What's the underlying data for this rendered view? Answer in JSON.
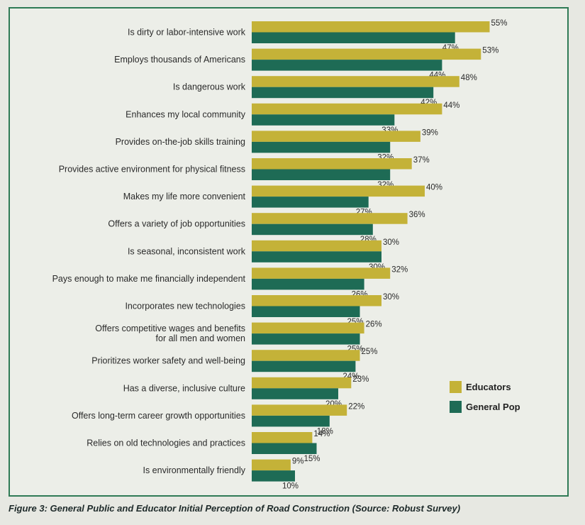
{
  "chart_data": {
    "type": "bar",
    "orientation": "horizontal",
    "categories": [
      "Is dirty or labor-intensive work",
      "Employs thousands of Americans",
      "Is dangerous work",
      "Enhances my local community",
      "Provides on-the-job skills training",
      "Provides active environment for physical fitness",
      "Makes my life more convenient",
      "Offers a variety of job opportunities",
      "Is seasonal, inconsistent work",
      "Pays enough to make me financially independent",
      "Incorporates new technologies",
      "Offers competitive wages and benefits\nfor all men and women",
      "Prioritizes worker safety and well-being",
      "Has a diverse, inclusive culture",
      "Offers long-term career growth opportunities",
      "Relies on old technologies and practices",
      "Is environmentally friendly"
    ],
    "series": [
      {
        "name": "Educators",
        "color": "#c4b238",
        "values": [
          55,
          53,
          48,
          44,
          39,
          37,
          40,
          36,
          30,
          32,
          30,
          26,
          25,
          23,
          22,
          14,
          9
        ],
        "labels": [
          "55%",
          "53%",
          "48%",
          "44%",
          "39%",
          "37%",
          "40%",
          "36%",
          "30%",
          "32%",
          "30%",
          "26%",
          "25%",
          "23%",
          "22%",
          "14%",
          "9%"
        ]
      },
      {
        "name": "General Pop",
        "color": "#1e6b55",
        "values": [
          47,
          44,
          42,
          33,
          32,
          32,
          27,
          28,
          30,
          26,
          25,
          25,
          24,
          20,
          18,
          15,
          10
        ],
        "labels": [
          "47%",
          "44%",
          "42%",
          "33%",
          "32%",
          "32%",
          "27%",
          "28%",
          "30%",
          "26%",
          "25%",
          "25%",
          "24%",
          "20%",
          "18%",
          "15%",
          "10%"
        ]
      }
    ],
    "xlim": [
      0,
      55
    ],
    "legend_position": "right",
    "grid": false
  },
  "caption": "Figure 3: General Public and Educator Initial Perception of Road Construction (Source: Robust Survey)"
}
